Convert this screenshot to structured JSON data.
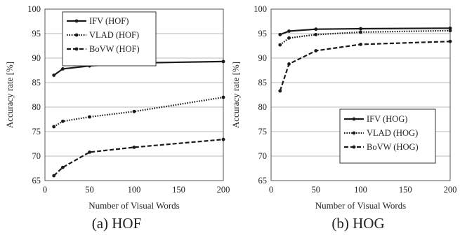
{
  "chart_data": [
    {
      "type": "line",
      "caption": "(a) HOF",
      "xlabel": "Number of Visual Words",
      "ylabel": "Accuracy rate [%]",
      "xlim": [
        0,
        200
      ],
      "ylim": [
        65,
        100
      ],
      "xticks": [
        "0",
        "50",
        "100",
        "150",
        "200"
      ],
      "yticks": [
        "65",
        "70",
        "75",
        "80",
        "85",
        "90",
        "95",
        "100"
      ],
      "grid": "horizontal",
      "legend_position": "top-left",
      "series": [
        {
          "name": "IFV (HOF)",
          "style": "solid",
          "x": [
            10,
            20,
            50,
            100,
            200
          ],
          "y": [
            86.5,
            87.8,
            88.4,
            89.0,
            89.3
          ]
        },
        {
          "name": "VLAD (HOF)",
          "style": "dotted",
          "x": [
            10,
            20,
            50,
            100,
            200
          ],
          "y": [
            76.0,
            77.1,
            78.0,
            79.1,
            82.0
          ]
        },
        {
          "name": "BoVW (HOF)",
          "style": "dashed",
          "x": [
            10,
            20,
            50,
            100,
            200
          ],
          "y": [
            66.0,
            67.7,
            70.8,
            71.8,
            73.4
          ]
        }
      ]
    },
    {
      "type": "line",
      "caption": "(b) HOG",
      "xlabel": "Number of Visual Words",
      "ylabel": "Accuracy rate [%]",
      "xlim": [
        0,
        200
      ],
      "ylim": [
        65,
        100
      ],
      "xticks": [
        "0",
        "50",
        "100",
        "150",
        "200"
      ],
      "yticks": [
        "65",
        "70",
        "75",
        "80",
        "85",
        "90",
        "95",
        "100"
      ],
      "grid": "horizontal",
      "legend_position": "bottom-right",
      "series": [
        {
          "name": "IFV (HOG)",
          "style": "solid",
          "x": [
            10,
            20,
            50,
            100,
            200
          ],
          "y": [
            94.8,
            95.5,
            95.9,
            96.0,
            96.1
          ]
        },
        {
          "name": "VLAD (HOG)",
          "style": "dotted",
          "x": [
            10,
            20,
            50,
            100,
            200
          ],
          "y": [
            92.7,
            94.1,
            94.8,
            95.3,
            95.6
          ]
        },
        {
          "name": "BoVW (HOG)",
          "style": "dashed",
          "x": [
            10,
            20,
            50,
            100,
            200
          ],
          "y": [
            83.3,
            88.8,
            91.5,
            92.8,
            93.4
          ]
        }
      ]
    }
  ]
}
